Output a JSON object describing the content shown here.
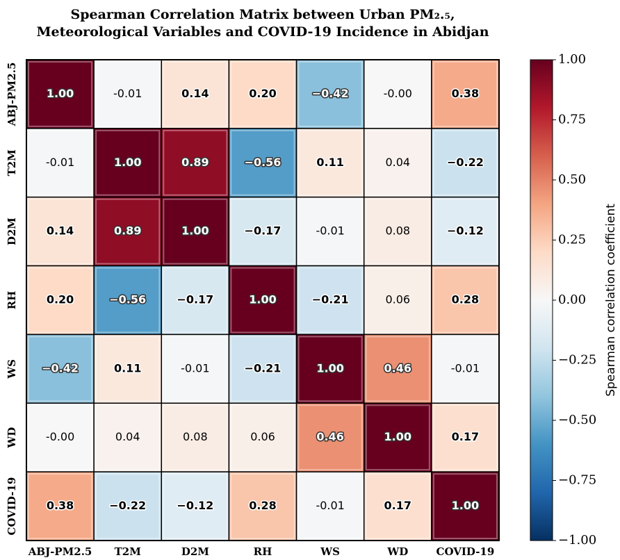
{
  "chart_data": {
    "type": "heatmap",
    "title": [
      "Spearman Correlation Matrix between Urban PM₂.₅,",
      "Meteorological Variables and COVID-19 Incidence in Abidjan"
    ],
    "x_categories": [
      "ABJ-PM2.5",
      "T2M",
      "D2M",
      "RH",
      "WS",
      "WD",
      "COVID-19"
    ],
    "y_categories": [
      "ABJ-PM2.5",
      "T2M",
      "D2M",
      "RH",
      "WS",
      "WD",
      "COVID-19"
    ],
    "values": [
      [
        1.0,
        -0.01,
        0.14,
        0.2,
        -0.42,
        0,
        0.38
      ],
      [
        -0.01,
        1.0,
        0.89,
        -0.56,
        0.11,
        0.04,
        -0.22
      ],
      [
        0.14,
        0.89,
        1.0,
        -0.17,
        -0.01,
        0.08,
        -0.12
      ],
      [
        0.2,
        -0.56,
        -0.17,
        1.0,
        -0.21,
        0.06,
        0.28
      ],
      [
        -0.42,
        0.11,
        -0.01,
        -0.21,
        1.0,
        0.46,
        -0.01
      ],
      [
        0,
        0.04,
        0.08,
        0.06,
        0.46,
        1.0,
        0.17
      ],
      [
        0.38,
        -0.22,
        -0.12,
        0.28,
        -0.01,
        0.17,
        1.0
      ]
    ],
    "value_labels": [
      [
        "1.00",
        "-0.01",
        "0.14",
        "0.20",
        "−0.42",
        "-0.00",
        "0.38"
      ],
      [
        "-0.01",
        "1.00",
        "0.89",
        "−0.56",
        "0.11",
        "0.04",
        "−0.22"
      ],
      [
        "0.14",
        "0.89",
        "1.00",
        "−0.17",
        "-0.01",
        "0.08",
        "−0.12"
      ],
      [
        "0.20",
        "−0.56",
        "−0.17",
        "1.00",
        "−0.21",
        "0.06",
        "0.28"
      ],
      [
        "−0.42",
        "0.11",
        "-0.01",
        "−0.21",
        "1.00",
        "0.46",
        "-0.01"
      ],
      [
        "-0.00",
        "0.04",
        "0.08",
        "0.06",
        "0.46",
        "1.00",
        "0.17"
      ],
      [
        "0.38",
        "−0.22",
        "−0.12",
        "0.28",
        "-0.01",
        "0.17",
        "1.00"
      ]
    ],
    "colormap": [
      "#053061",
      "#2166ac",
      "#4393c3",
      "#92c5de",
      "#d1e5f0",
      "#f7f7f7",
      "#fddbc7",
      "#f4a582",
      "#d6604d",
      "#b2182b",
      "#67001f"
    ],
    "colorbar_label": "Spearman correlation coefficient",
    "clim": [
      -1,
      1
    ],
    "cticks": [
      {
        "value": -1,
        "label": "−1.00"
      },
      {
        "value": -0.75,
        "label": "−0.75"
      },
      {
        "value": -0.5,
        "label": "−0.50"
      },
      {
        "value": -0.25,
        "label": "−0.25"
      },
      {
        "value": 0,
        "label": "0.00"
      },
      {
        "value": 0.25,
        "label": "0.25"
      },
      {
        "value": 0.5,
        "label": "0.50"
      },
      {
        "value": 0.75,
        "label": "0.75"
      },
      {
        "value": 1,
        "label": "1.00"
      }
    ]
  }
}
